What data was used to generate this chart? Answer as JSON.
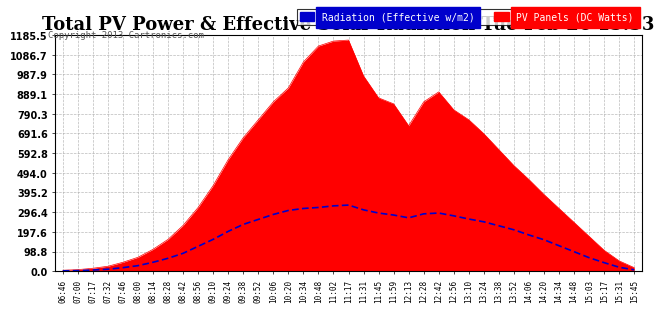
{
  "title": "Total PV Power & Effective Solar Radiation Tue Feb 26 15:53",
  "copyright": "Copyright 2013 Cartronics.com",
  "legend_labels": [
    "Radiation (Effective w/m2)",
    "PV Panels (DC Watts)"
  ],
  "legend_colors": [
    "#0000cc",
    "#ff0000"
  ],
  "yticks": [
    0.0,
    98.8,
    197.6,
    296.4,
    395.2,
    494.0,
    592.8,
    691.6,
    790.3,
    889.1,
    987.9,
    1086.7,
    1185.5
  ],
  "ymax": 1185.5,
  "ymin": 0.0,
  "background_color": "#ffffff",
  "plot_bg_color": "#ffffff",
  "grid_color": "#aaaaaa",
  "title_fontsize": 13,
  "xtick_labels": [
    "06:46",
    "07:00",
    "07:17",
    "07:32",
    "07:46",
    "08:00",
    "08:14",
    "08:28",
    "08:42",
    "08:56",
    "09:10",
    "09:24",
    "09:38",
    "09:52",
    "10:06",
    "10:20",
    "10:34",
    "10:48",
    "11:02",
    "11:17",
    "11:31",
    "11:45",
    "11:59",
    "12:13",
    "12:28",
    "12:42",
    "12:56",
    "13:10",
    "13:24",
    "13:38",
    "13:52",
    "14:06",
    "14:20",
    "14:34",
    "14:48",
    "15:03",
    "15:17",
    "15:31",
    "15:45"
  ],
  "pv_power": [
    5,
    8,
    15,
    25,
    45,
    70,
    110,
    160,
    230,
    320,
    430,
    560,
    670,
    760,
    850,
    920,
    1050,
    1130,
    1155,
    1160,
    980,
    870,
    840,
    730,
    850,
    900,
    810,
    760,
    690,
    610,
    530,
    460,
    385,
    315,
    245,
    175,
    105,
    52,
    18
  ],
  "radiation": [
    2,
    3,
    6,
    10,
    18,
    28,
    45,
    65,
    90,
    125,
    160,
    200,
    235,
    260,
    285,
    305,
    315,
    320,
    328,
    332,
    308,
    292,
    282,
    268,
    288,
    292,
    278,
    262,
    248,
    228,
    208,
    182,
    158,
    128,
    98,
    68,
    43,
    20,
    7
  ]
}
